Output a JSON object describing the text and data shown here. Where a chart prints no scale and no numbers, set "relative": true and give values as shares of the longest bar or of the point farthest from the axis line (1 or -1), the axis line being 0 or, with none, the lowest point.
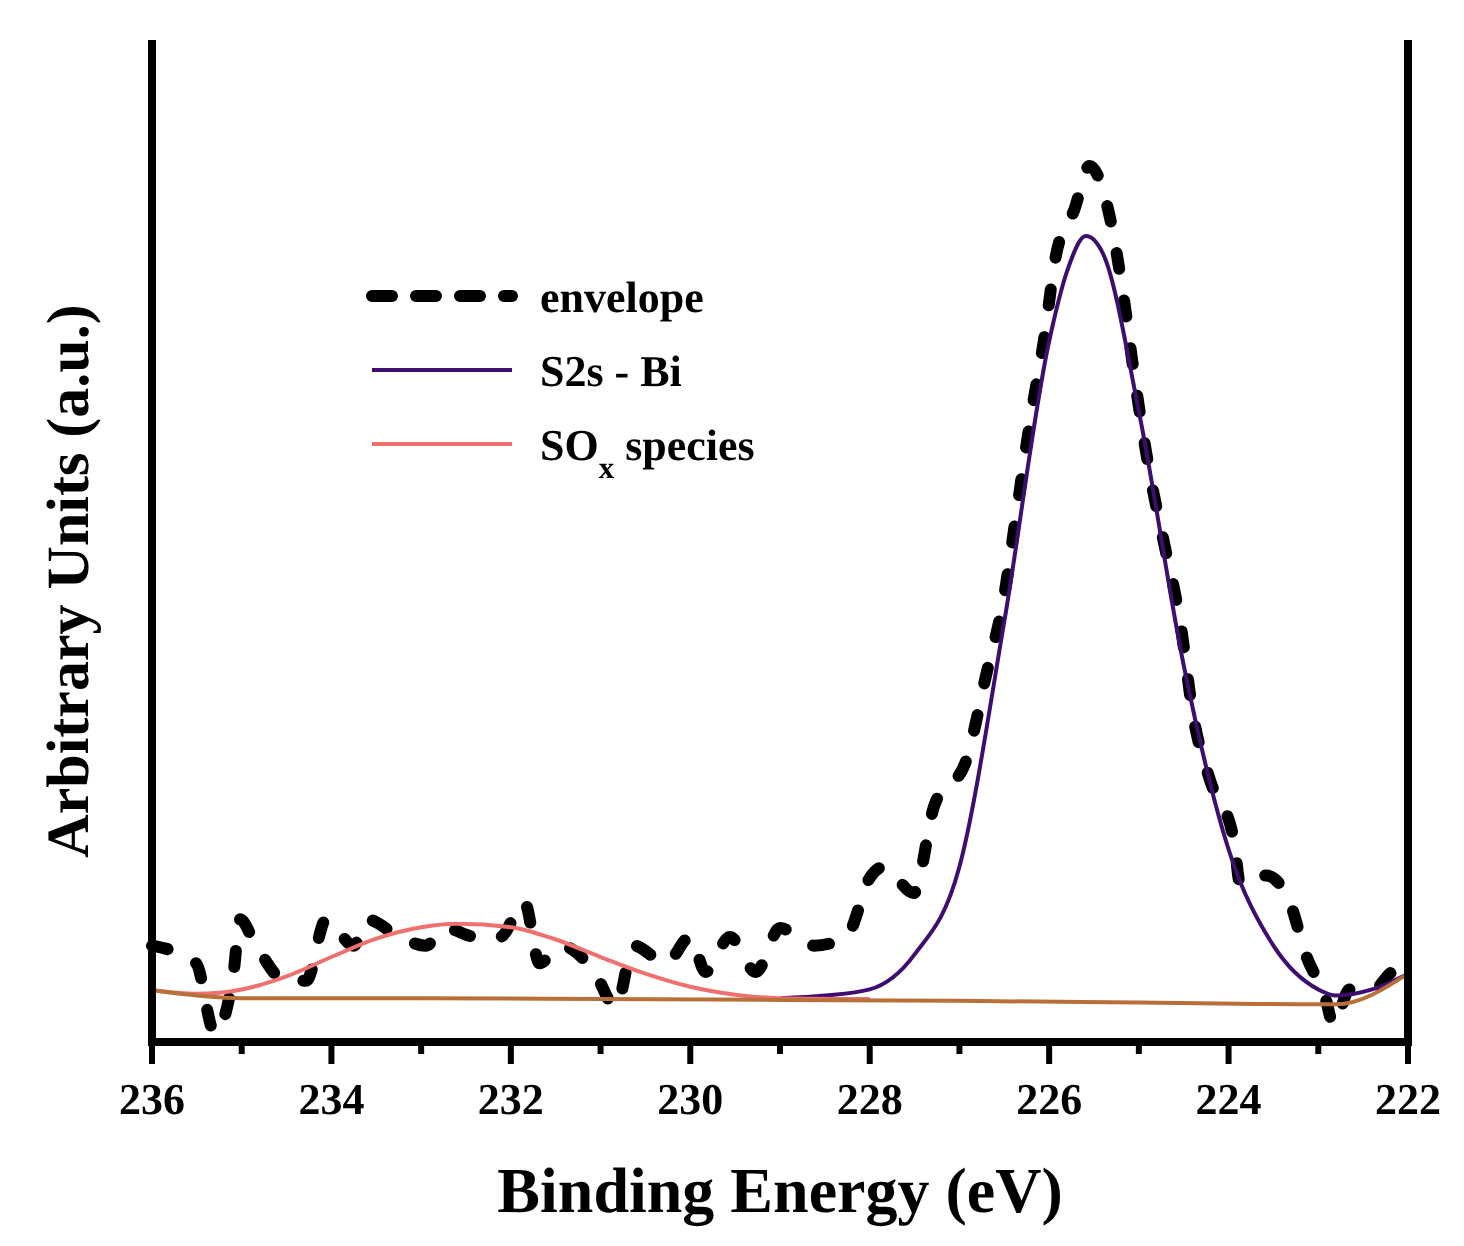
{
  "chart_data": {
    "type": "line",
    "relative": true,
    "xlabel": "Binding Energy (eV)",
    "ylabel": "Arbitrary Units (a.u.)",
    "xlim": [
      236,
      222
    ],
    "xticks": [
      236,
      {
        "value": 235,
        "label": null
      },
      234,
      {
        "value": 233,
        "label": null
      },
      232,
      {
        "value": 231,
        "label": null
      },
      230,
      {
        "value": 229,
        "label": null
      },
      228,
      {
        "value": 227,
        "label": null
      },
      226,
      {
        "value": 225,
        "label": null
      },
      224,
      {
        "value": 223,
        "label": null
      },
      222
    ],
    "legend": "top left",
    "grid": false,
    "series": [
      {
        "name": "envelope",
        "color": "#000000",
        "line_style": "dashed",
        "x": [
          236,
          235.51,
          235.3,
          235.09,
          235.02,
          234.84,
          234.51,
          234.28,
          234.06,
          233.75,
          233.61,
          233.24,
          232.95,
          232.73,
          232.39,
          232.12,
          231.85,
          231.68,
          231.45,
          231.07,
          230.83,
          230.63,
          230.27,
          230.0,
          229.83,
          229.56,
          229.27,
          229.0,
          228.62,
          228.26,
          228.1,
          228.04,
          227.84,
          227.51,
          227.28,
          226.93,
          226.7,
          226.5,
          226.37,
          226.21,
          226.06,
          225.92,
          225.72,
          225.55,
          225.32,
          225.17,
          225.05,
          224.88,
          224.72,
          224.54,
          224.39,
          224.21,
          223.94,
          223.87,
          223.58,
          223.32,
          223.14,
          222.92,
          222.83,
          222.65,
          222.38,
          222.16,
          222.0
        ],
        "values": [
          0.11,
          0.09,
          0.01,
          0.08,
          0.14,
          0.11,
          0.07,
          0.07,
          0.14,
          0.11,
          0.14,
          0.12,
          0.11,
          0.13,
          0.12,
          0.12,
          0.16,
          0.09,
          0.11,
          0.08,
          0.04,
          0.11,
          0.09,
          0.12,
          0.08,
          0.12,
          0.08,
          0.13,
          0.11,
          0.12,
          0.16,
          0.18,
          0.2,
          0.17,
          0.27,
          0.32,
          0.42,
          0.51,
          0.6,
          0.71,
          0.8,
          0.9,
          0.95,
          1.0,
          0.94,
          0.85,
          0.76,
          0.65,
          0.57,
          0.48,
          0.37,
          0.3,
          0.23,
          0.18,
          0.19,
          0.16,
          0.1,
          0.05,
          0.02,
          0.06,
          0.06,
          0.08,
          0.08
        ]
      },
      {
        "name": "S2s - Bi",
        "color": "#3f0d70",
        "line_style": "solid",
        "x": [
          229,
          228.5,
          228,
          227.5,
          227,
          226.5,
          226,
          225.8,
          225.59,
          225.4,
          225,
          224.5,
          224,
          223.5,
          223,
          222.8,
          222.4,
          222
        ],
        "values": [
          0.05,
          0.053,
          0.06,
          0.1,
          0.2,
          0.48,
          0.8,
          0.88,
          0.92,
          0.9,
          0.72,
          0.43,
          0.22,
          0.11,
          0.06,
          0.053,
          0.06,
          0.078
        ]
      },
      {
        "name": "SO$_{x}$ species",
        "color": "#f07070",
        "line_style": "solid",
        "x": [
          236,
          235.5,
          235,
          234.5,
          234,
          233.5,
          233,
          232.6,
          232,
          231.5,
          231,
          230.5,
          230,
          229.5,
          229,
          228
        ],
        "values": [
          0.059,
          0.055,
          0.06,
          0.075,
          0.097,
          0.118,
          0.131,
          0.135,
          0.131,
          0.117,
          0.097,
          0.078,
          0.063,
          0.054,
          0.05,
          0.049
        ]
      },
      {
        "color": "#b87038",
        "line_style": "solid",
        "x": [
          236,
          235,
          233,
          231,
          229,
          227,
          225,
          223,
          222.8,
          222
        ],
        "values": [
          0.059,
          0.05,
          0.05,
          0.049,
          0.048,
          0.047,
          0.045,
          0.043,
          0.043,
          0.078
        ]
      }
    ]
  }
}
